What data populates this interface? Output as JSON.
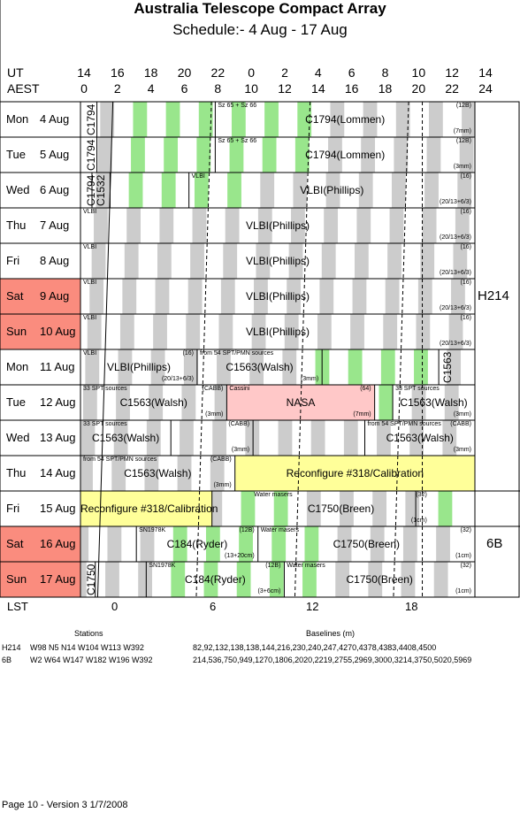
{
  "title": "Australia Telescope Compact Array",
  "subtitle": "Schedule:-  4  Aug - 17 Aug",
  "header": {
    "ut_label": "UT",
    "aest_label": "AEST",
    "ut_hours": [
      "14",
      "16",
      "18",
      "20",
      "22",
      "0",
      "2",
      "4",
      "6",
      "8",
      "10",
      "12",
      "14"
    ],
    "aest_hours": [
      "0",
      "2",
      "4",
      "6",
      "8",
      "10",
      "12",
      "14",
      "16",
      "18",
      "20",
      "22",
      "24"
    ]
  },
  "days": [
    {
      "dow": "Mon",
      "date": "4  Aug",
      "weekend": false
    },
    {
      "dow": "Tue",
      "date": "5  Aug",
      "weekend": false
    },
    {
      "dow": "Wed",
      "date": "6  Aug",
      "weekend": false
    },
    {
      "dow": "Thu",
      "date": "7  Aug",
      "weekend": false
    },
    {
      "dow": "Fri",
      "date": "8  Aug",
      "weekend": false
    },
    {
      "dow": "Sat",
      "date": "9  Aug",
      "weekend": true
    },
    {
      "dow": "Sun",
      "date": "10 Aug",
      "weekend": true
    },
    {
      "dow": "Mon",
      "date": "11 Aug",
      "weekend": false
    },
    {
      "dow": "Tue",
      "date": "12 Aug",
      "weekend": false
    },
    {
      "dow": "Wed",
      "date": "13 Aug",
      "weekend": false
    },
    {
      "dow": "Thu",
      "date": "14 Aug",
      "weekend": false
    },
    {
      "dow": "Fri",
      "date": "15 Aug",
      "weekend": false
    },
    {
      "dow": "Sat",
      "date": "16 Aug",
      "weekend": true
    },
    {
      "dow": "Sun",
      "date": "17 Aug",
      "weekend": true
    }
  ],
  "configs": [
    {
      "label": "H214"
    },
    {
      "label": "6B"
    }
  ],
  "rows": [
    {
      "cells": [
        {
          "vert": "C1794"
        },
        {
          "label": "C1794(Lommen)",
          "topleft": "Sz 65 + Sz 66",
          "topright": "(12B)",
          "bottomright": "(7mm)"
        }
      ]
    },
    {
      "cells": [
        {
          "vert": "C1794"
        },
        {
          "label": "C1794(Lommen)",
          "topleft": "Sz 65 + Sz 66",
          "topright": "(12B)",
          "bottomright": "(3mm)"
        }
      ]
    },
    {
      "cells": [
        {
          "vert": "C1794"
        },
        {
          "vert": "C1532"
        },
        {
          "label": "VLBI(Phillips)",
          "topleft": "VLBI",
          "topright": "(16)",
          "bottomright": "(20/13+6/3)"
        }
      ]
    },
    {
      "cells": [
        {
          "label": "VLBI(Phillips)",
          "topleft": "VLBI",
          "topright": "(16)",
          "bottomright": "(20/13+6/3)"
        }
      ]
    },
    {
      "cells": [
        {
          "label": "VLBI(Phillips)",
          "topleft": "VLBI",
          "topright": "(16)",
          "bottomright": "(20/13+6/3)"
        }
      ]
    },
    {
      "cells": [
        {
          "label": "VLBI(Phillips)",
          "topleft": "VLBI",
          "topright": "(16)",
          "bottomright": "(20/13+6/3)"
        }
      ]
    },
    {
      "cells": [
        {
          "label": "VLBI(Phillips)",
          "topleft": "VLBI",
          "topright": "(16)",
          "bottomright": "(20/13+6/3)"
        }
      ]
    },
    {
      "cells": [
        {
          "label": "VLBI(Phillips)",
          "topleft": "VLBI",
          "topright": "(16)",
          "bottomright": "(20/13+6/3)"
        },
        {
          "label": "C1563(Walsh)",
          "topleft": "from 54 SPT/PMN sources",
          "bottomright": "(3mm)"
        },
        {
          "vert": "C1563"
        }
      ]
    },
    {
      "cells": [
        {
          "label": "C1563(Walsh)",
          "topleft": "33 SPT sources",
          "topright": "(CABB)",
          "bottomright": "(3mm)"
        },
        {
          "label": "NASA",
          "topleft": "Cassini",
          "topright": "(64)",
          "bottomright": "(7mm)"
        },
        {
          "label": "C1563(Walsh)",
          "topleft": "33 SPT sources",
          "bottomright": "(3mm)"
        }
      ]
    },
    {
      "cells": [
        {
          "label": "C1563(Walsh)",
          "topleft": "33 SPT sources"
        },
        {
          "topright": "(CABB)",
          "bottomright": "(3mm)"
        },
        {
          "label": "C1563(Walsh)",
          "topleft": "from 54 SPT/PMN sources",
          "topright": "(CABB)",
          "bottomright": "(3mm)"
        }
      ]
    },
    {
      "cells": [
        {
          "label": "C1563(Walsh)",
          "topleft": "from 54 SPT/PMN sources",
          "topright": "(CABB)",
          "bottomright": "(3mm)"
        },
        {
          "label": "Reconfigure #318/Calibration"
        }
      ]
    },
    {
      "cells": [
        {
          "label": "Reconfigure #318/Calibration"
        },
        {
          "label": "C1750(Breen)",
          "topleft": "Water masers",
          "topright": "(32)",
          "bottomright": "(1cm)"
        }
      ]
    },
    {
      "cells": [
        {
          "label": "C184(Ryder)",
          "topleft": "SN1978K",
          "topright": "(12B)",
          "bottomright": "(13+20cm)"
        },
        {
          "label": "C1750(Breen)",
          "topleft": "Water masers",
          "topright": "(32)",
          "bottomright": "(1cm)"
        }
      ]
    },
    {
      "cells": [
        {
          "vert": "C1750"
        },
        {
          "label": "C184(Ryder)",
          "topleft": "SN1978K",
          "topright": "(12B)",
          "bottomright": "(3+6cm)"
        },
        {
          "label": "C1750(Breen)",
          "topleft": "Water masers",
          "topright": "(32)",
          "bottomright": "(1cm)"
        }
      ]
    }
  ],
  "lst": {
    "label": "LST",
    "ticks": [
      "0",
      "6",
      "12",
      "18"
    ]
  },
  "footer_table": {
    "stations_header": "Stations",
    "baselines_header": "Baselines (m)",
    "rows": [
      {
        "config": "H214",
        "stations": "W98 N5 N14 W104 W113 W392",
        "baselines": "82,92,132,138,138,144,216,230,240,247,4270,4378,4383,4408,4500"
      },
      {
        "config": "6B",
        "stations": "W2 W64 W147 W182 W196 W392",
        "baselines": "214,536,750,949,1270,1806,2020,2219,2755,2969,3000,3214,3750,5020,5969"
      }
    ]
  },
  "page_footer": "Page 10 - Version 3  1/7/2008",
  "colors": {
    "weekend": "#fa8c7e",
    "grey_band": "#cccccc",
    "green_band": "#99e68c",
    "yellow": "#ffff99",
    "pink": "#ffc8c8"
  }
}
